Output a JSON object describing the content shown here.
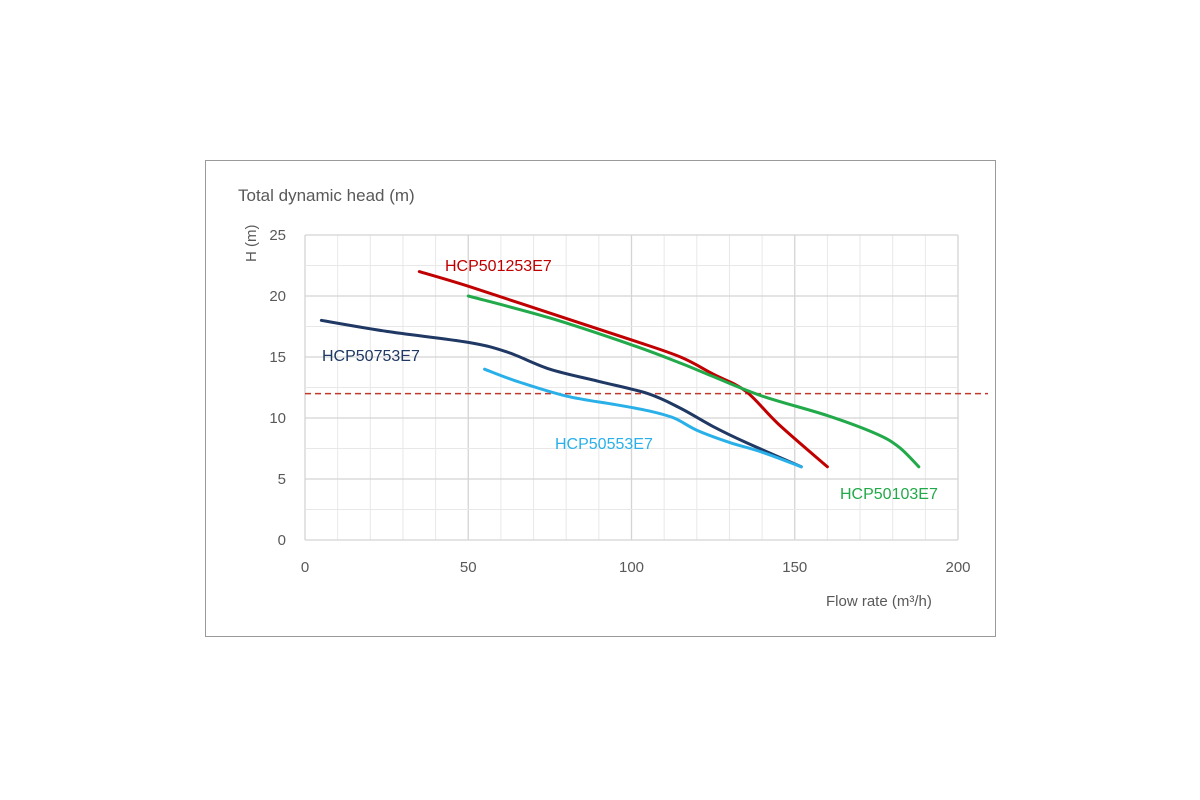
{
  "chart_data": {
    "type": "line",
    "title": "Total dynamic head (m)",
    "ylabel": "H (m)",
    "xlabel": "Flow rate (m³/h)",
    "xlim": [
      0,
      200
    ],
    "ylim": [
      0,
      25
    ],
    "x_ticks": [
      0,
      50,
      100,
      150,
      200
    ],
    "y_ticks": [
      0,
      5,
      10,
      15,
      20,
      25
    ],
    "grid": true,
    "reference_line": {
      "y": 12,
      "style": "dashed",
      "color": "#c0392b"
    },
    "series": [
      {
        "name": "HCP501253E7",
        "color": "#c00000",
        "points": [
          [
            35,
            22
          ],
          [
            50,
            20.8
          ],
          [
            75,
            18.6
          ],
          [
            100,
            16.4
          ],
          [
            115,
            15
          ],
          [
            125,
            13.6
          ],
          [
            135,
            12.2
          ],
          [
            145,
            9.5
          ],
          [
            160,
            6
          ]
        ]
      },
      {
        "name": "HCP50103E7",
        "color": "#22a94a",
        "points": [
          [
            50,
            20
          ],
          [
            75,
            18.2
          ],
          [
            100,
            16
          ],
          [
            115,
            14.5
          ],
          [
            125,
            13.4
          ],
          [
            140,
            11.8
          ],
          [
            160,
            10.2
          ],
          [
            175,
            8.7
          ],
          [
            182,
            7.6
          ],
          [
            188,
            6
          ]
        ]
      },
      {
        "name": "HCP50753E7",
        "color": "#1f3864",
        "points": [
          [
            5,
            18
          ],
          [
            25,
            17.1
          ],
          [
            50,
            16.2
          ],
          [
            62,
            15.4
          ],
          [
            75,
            14
          ],
          [
            90,
            13
          ],
          [
            105,
            12
          ],
          [
            115,
            10.8
          ],
          [
            125,
            9.3
          ],
          [
            135,
            8
          ],
          [
            152,
            6
          ]
        ]
      },
      {
        "name": "HCP50553E7",
        "color": "#29b0e8",
        "points": [
          [
            55,
            14
          ],
          [
            65,
            13
          ],
          [
            80,
            11.8
          ],
          [
            95,
            11.1
          ],
          [
            105,
            10.6
          ],
          [
            113,
            10
          ],
          [
            120,
            9
          ],
          [
            130,
            8
          ],
          [
            140,
            7.2
          ],
          [
            152,
            6
          ]
        ]
      }
    ]
  }
}
